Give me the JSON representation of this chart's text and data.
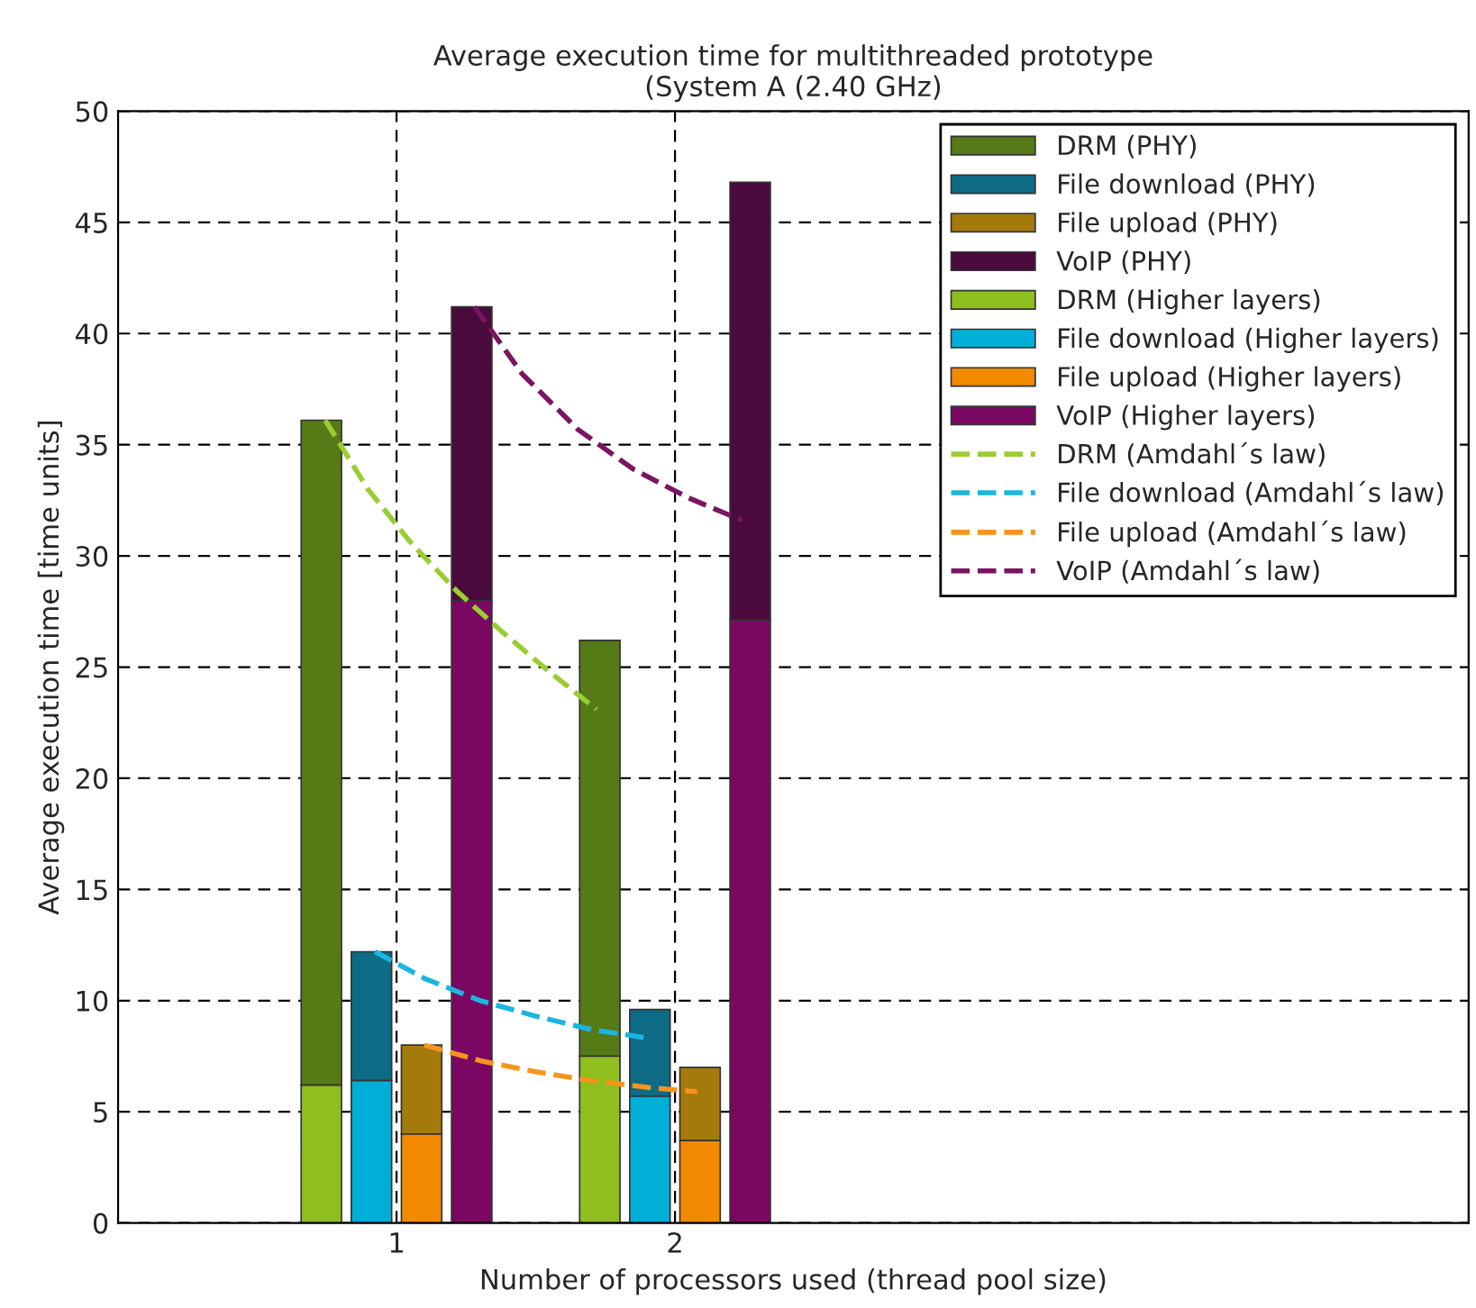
{
  "chart_data": {
    "type": "bar",
    "title": "Average execution time for multithreaded prototype\n(System A (2.40 GHz)",
    "xlabel": "Number of processors used (thread pool size)",
    "ylabel": "Average execution time [time units]",
    "xlim": [
      0,
      4.85
    ],
    "xticks": [
      1,
      2
    ],
    "ylim": [
      0,
      50
    ],
    "yticks": [
      0,
      5,
      10,
      15,
      20,
      25,
      30,
      35,
      40,
      45,
      50
    ],
    "grid": true,
    "legend": "top right",
    "series": [
      {
        "name": "DRM (PHY)",
        "color": "#557a16",
        "x": [
          0.73,
          1.73
        ],
        "base": [
          6.2,
          7.5
        ],
        "values": [
          29.9,
          18.7
        ]
      },
      {
        "name": "File download (PHY)",
        "color": "#0e6b85",
        "x": [
          0.91,
          1.91
        ],
        "base": [
          6.4,
          5.7
        ],
        "values": [
          5.8,
          3.9
        ]
      },
      {
        "name": "File upload (PHY)",
        "color": "#a47a0c",
        "x": [
          1.09,
          2.09
        ],
        "base": [
          4.0,
          3.7
        ],
        "values": [
          4.0,
          3.3
        ]
      },
      {
        "name": "VoIP (PHY)",
        "color": "#4a0a3c",
        "x": [
          1.27,
          2.27
        ],
        "base": [
          28.0,
          27.1
        ],
        "values": [
          13.2,
          19.7
        ]
      },
      {
        "name": "DRM (Higher layers)",
        "color": "#8ebf1f",
        "x": [
          0.73,
          1.73
        ],
        "values": [
          6.2,
          7.5
        ]
      },
      {
        "name": "File download (Higher layers)",
        "color": "#00afd8",
        "x": [
          0.91,
          1.91
        ],
        "values": [
          6.4,
          5.7
        ]
      },
      {
        "name": "File upload (Higher layers)",
        "color": "#f28a00",
        "x": [
          1.09,
          2.09
        ],
        "values": [
          4.0,
          3.7
        ]
      },
      {
        "name": "VoIP (Higher layers)",
        "color": "#7a0862",
        "x": [
          1.27,
          2.27
        ],
        "values": [
          28.0,
          27.1
        ]
      },
      {
        "type": "line",
        "line_style": "dashed",
        "name": "DRM (Amdahl´s law)",
        "color": "#9acd32",
        "x": [
          0.744,
          0.897,
          1.058,
          1.218,
          1.378,
          1.538,
          1.718
        ],
        "values": [
          36.1,
          33.0,
          30.5,
          28.4,
          26.6,
          24.9,
          23.1
        ]
      },
      {
        "type": "line",
        "line_style": "dashed",
        "name": "File download (Amdahl´s law)",
        "color": "#1cb5e0",
        "x": [
          0.923,
          1.1,
          1.3,
          1.5,
          1.7,
          1.91
        ],
        "values": [
          12.2,
          11.0,
          10.0,
          9.3,
          8.7,
          8.3
        ]
      },
      {
        "type": "line",
        "line_style": "dashed",
        "name": "File upload (Amdahl´s law)",
        "color": "#f7941d",
        "x": [
          1.1,
          1.3,
          1.5,
          1.7,
          1.9,
          2.08
        ],
        "values": [
          8.0,
          7.3,
          6.8,
          6.4,
          6.1,
          5.9
        ]
      },
      {
        "type": "line",
        "line_style": "dashed",
        "name": "VoIP (Amdahl´s law)",
        "color": "#7b1561",
        "x": [
          1.28,
          1.45,
          1.65,
          1.85,
          2.05,
          2.24
        ],
        "values": [
          41.2,
          38.2,
          35.7,
          33.9,
          32.6,
          31.6
        ]
      }
    ]
  }
}
